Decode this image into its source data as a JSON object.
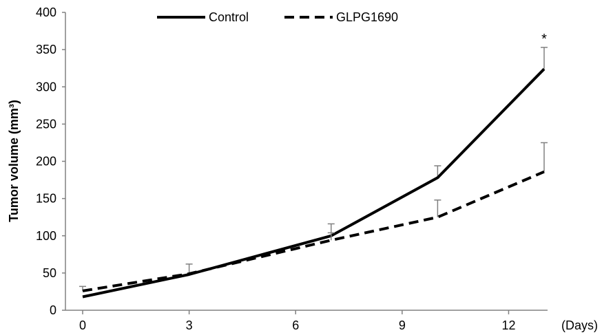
{
  "chart_data": {
    "type": "line",
    "title": "",
    "xlabel": "(Days)",
    "ylabel": "Tumor volume (mm³)",
    "x": [
      0,
      3,
      7,
      10,
      13
    ],
    "x_ticks": [
      "0",
      "3",
      "6",
      "9",
      "12"
    ],
    "y_ticks": [
      "0",
      "50",
      "100",
      "150",
      "200",
      "250",
      "300",
      "350",
      "400"
    ],
    "xlim": [
      0,
      13
    ],
    "ylim": [
      0,
      400
    ],
    "grid": false,
    "legend_position": "top",
    "series": [
      {
        "name": "Control",
        "style": "solid",
        "color": "#000000",
        "values": [
          18,
          48,
          100,
          178,
          324
        ],
        "error": [
          0,
          0,
          16,
          16,
          29
        ]
      },
      {
        "name": "GLPG1690",
        "style": "dashed",
        "color": "#000000",
        "values": [
          26,
          49,
          94,
          125,
          186
        ],
        "error": [
          6,
          13,
          10,
          23,
          39
        ]
      }
    ],
    "annotations": [
      {
        "text": "*",
        "x": 13,
        "y": 365
      }
    ]
  },
  "colors": {
    "line": "#000000",
    "axis": "#808080",
    "errorbar": "#808080"
  }
}
